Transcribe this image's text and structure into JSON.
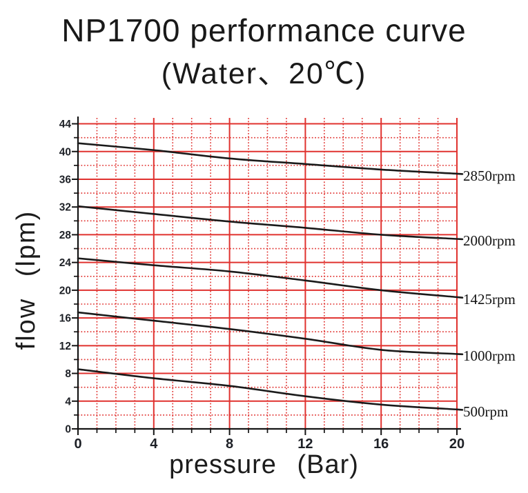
{
  "title": {
    "line1": "NP1700 performance curve",
    "line2": "(Water、20℃)"
  },
  "chart_data": {
    "type": "line",
    "title": "NP1700 performance curve (Water、20℃)",
    "xlabel": "pressure (Bar)",
    "ylabel": "flow (lpm)",
    "x": [
      0,
      4,
      8,
      12,
      16,
      20
    ],
    "xlim": [
      0,
      20
    ],
    "ylim": [
      0,
      44
    ],
    "x_tick_labels": [
      "0",
      "4",
      "8",
      "12",
      "16",
      "20"
    ],
    "y_tick_labels": [
      "0",
      "4",
      "8",
      "12",
      "16",
      "20",
      "24",
      "28",
      "32",
      "36",
      "40",
      "44"
    ],
    "x_major_step": 4,
    "x_minor_step": 1,
    "y_major_step": 4,
    "y_minor_step": 2,
    "grid": {
      "on": true,
      "color": "#e0312e",
      "major": "solid every 4 units",
      "minor": "dotted every 1 unit (x) / 2 units (y)"
    },
    "series": [
      {
        "name": "2850rpm",
        "values": [
          41.2,
          40.2,
          39.0,
          38.2,
          37.4,
          36.8
        ]
      },
      {
        "name": "2000rpm",
        "values": [
          32.1,
          31.0,
          29.9,
          29.0,
          28.0,
          27.4
        ]
      },
      {
        "name": "1425rpm",
        "values": [
          24.6,
          23.6,
          22.7,
          21.4,
          20.0,
          19.0
        ]
      },
      {
        "name": "1000rpm",
        "values": [
          16.8,
          15.6,
          14.4,
          13.0,
          11.4,
          10.8
        ]
      },
      {
        "name": "500rpm",
        "values": [
          8.6,
          7.3,
          6.2,
          4.7,
          3.5,
          2.8
        ]
      }
    ],
    "series_color": "#1a1a1a",
    "legend_position": "right of curve ends"
  },
  "colors": {
    "grid_red": "#e0312e",
    "axis_black": "#141414",
    "curve_black": "#1a1a1a",
    "text_dark": "#191919"
  }
}
